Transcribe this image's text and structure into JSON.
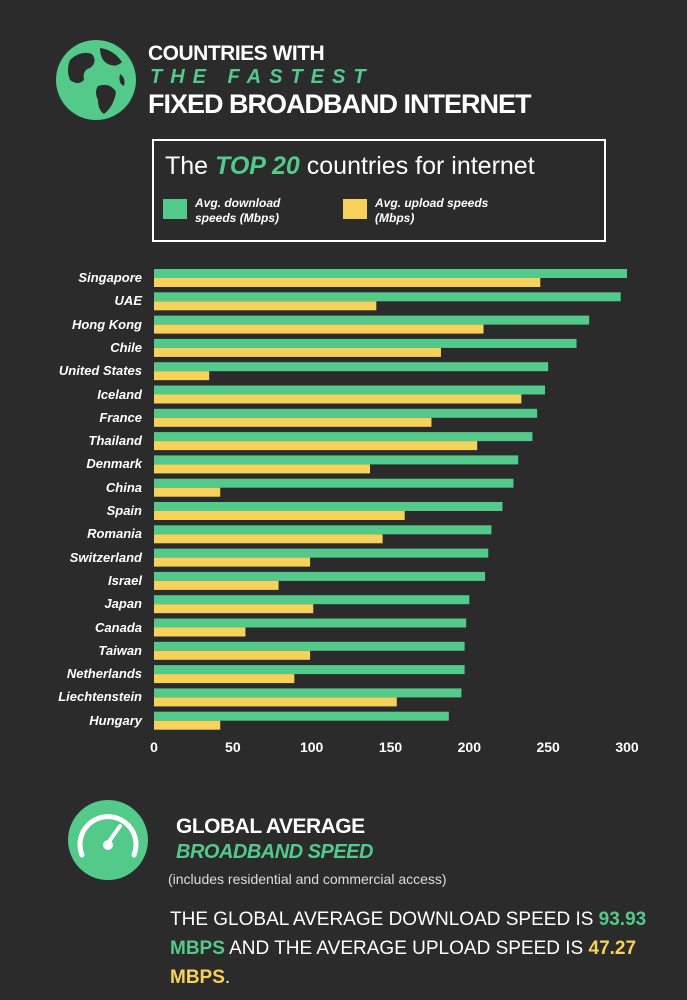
{
  "header": {
    "line1": "COUNTRIES WITH",
    "line2": "THE FASTEST",
    "line3": "FIXED BROADBAND INTERNET"
  },
  "chart_data": {
    "type": "hbar",
    "title_parts": [
      "The",
      "TOP 20",
      "countries for internet"
    ],
    "categories": [
      "Singapore",
      "UAE",
      "Hong Kong",
      "Chile",
      "United States",
      "Iceland",
      "France",
      "Thailand",
      "Denmark",
      "China",
      "Spain",
      "Romania",
      "Switzerland",
      "Israel",
      "Japan",
      "Canada",
      "Taiwan",
      "Netherlands",
      "Liechtenstein",
      "Hungary"
    ],
    "series": [
      {
        "name": "Avg. download speeds (Mbps)",
        "color": "#53c98a",
        "values": [
          300,
          296,
          276,
          268,
          250,
          248,
          243,
          240,
          231,
          228,
          221,
          214,
          212,
          210,
          200,
          198,
          197,
          197,
          195,
          187
        ]
      },
      {
        "name": "Avg. upload speeds (Mbps)",
        "color": "#f6d25a",
        "values": [
          245,
          141,
          209,
          182,
          35,
          233,
          176,
          205,
          137,
          42,
          159,
          145,
          99,
          79,
          101,
          58,
          99,
          89,
          154,
          42
        ]
      }
    ],
    "xlim": [
      0,
      300
    ],
    "xticks": [
      0,
      50,
      100,
      150,
      200,
      250,
      300
    ],
    "grid": false
  },
  "footer": {
    "title1": "GLOBAL AVERAGE",
    "title2": "BROADBAND SPEED",
    "note": "(includes residential and commercial access)",
    "text_parts": [
      "THE GLOBAL AVERAGE DOWNLOAD SPEED IS ",
      "93.93 MBPS",
      " AND THE AVERAGE UPLOAD SPEED IS ",
      "47.27 MBPS",
      "."
    ]
  }
}
